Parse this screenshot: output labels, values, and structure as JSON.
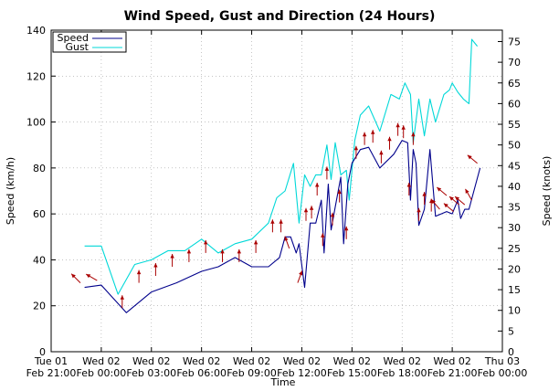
{
  "chart_data": {
    "type": "line",
    "title": "Wind Speed, Gust and Direction (24 Hours)",
    "xlabel": "Time",
    "ylabel": "Speed (km/h)",
    "y2label": "Speed (knots)",
    "ylim": [
      0,
      140
    ],
    "y2lim": [
      0,
      77.76
    ],
    "xlim": [
      "2014-02-01 21:00",
      "2014-02-03 00:00"
    ],
    "grid": true,
    "legend": "top-left",
    "yticks": [
      "0",
      "20",
      "40",
      "60",
      "80",
      "100",
      "120",
      "140"
    ],
    "y2ticks": [
      "0",
      "5",
      "10",
      "15",
      "20",
      "25",
      "30",
      "35",
      "40",
      "45",
      "50",
      "55",
      "60",
      "65",
      "70",
      "75"
    ],
    "xticks": [
      {
        "line1": "Tue 01",
        "line2": "Feb 21:00"
      },
      {
        "line1": "Wed 02",
        "line2": "Feb 00:00"
      },
      {
        "line1": "Wed 02",
        "line2": "Feb 03:00"
      },
      {
        "line1": "Wed 02",
        "line2": "Feb 06:00"
      },
      {
        "line1": "Wed 02",
        "line2": "Feb 09:00"
      },
      {
        "line1": "Wed 02",
        "line2": "Feb 12:00"
      },
      {
        "line1": "Wed 02",
        "line2": "Feb 15:00"
      },
      {
        "line1": "Wed 02",
        "line2": "Feb 18:00"
      },
      {
        "line1": "Wed 02",
        "line2": "Feb 21:00"
      },
      {
        "line1": "Thu 03",
        "line2": "Feb 00:00"
      }
    ],
    "series": [
      {
        "name": "Speed",
        "color": "#00008b",
        "x": [
          "2014-02-01 23:00",
          "2014-02-02 00:00",
          "2014-02-02 01:30",
          "2014-02-02 03:00",
          "2014-02-02 04:30",
          "2014-02-02 06:00",
          "2014-02-02 07:00",
          "2014-02-02 08:00",
          "2014-02-02 09:00",
          "2014-02-02 10:00",
          "2014-02-02 10:40",
          "2014-02-02 11:00",
          "2014-02-02 11:20",
          "2014-02-02 11:40",
          "2014-02-02 11:50",
          "2014-02-02 12:10",
          "2014-02-02 12:30",
          "2014-02-02 12:50",
          "2014-02-02 13:10",
          "2014-02-02 13:20",
          "2014-02-02 13:35",
          "2014-02-02 13:45",
          "2014-02-02 14:00",
          "2014-02-02 14:20",
          "2014-02-02 14:30",
          "2014-02-02 14:45",
          "2014-02-02 15:00",
          "2014-02-02 15:30",
          "2014-02-02 16:00",
          "2014-02-02 16:40",
          "2014-02-02 17:30",
          "2014-02-02 18:00",
          "2014-02-02 18:20",
          "2014-02-02 18:30",
          "2014-02-02 18:40",
          "2014-02-02 18:50",
          "2014-02-02 19:00",
          "2014-02-02 19:20",
          "2014-02-02 19:40",
          "2014-02-02 20:00",
          "2014-02-02 20:40",
          "2014-02-02 21:00",
          "2014-02-02 21:20",
          "2014-02-02 21:30",
          "2014-02-02 21:45",
          "2014-02-02 22:00",
          "2014-02-02 22:40"
        ],
        "values": [
          28,
          29,
          17,
          26,
          30,
          35,
          37,
          41,
          37,
          37,
          41,
          50,
          50,
          43,
          47,
          28,
          56,
          56,
          66,
          43,
          73,
          53,
          63,
          76,
          47,
          73,
          82,
          88,
          89,
          80,
          86,
          92,
          91,
          66,
          88,
          82,
          55,
          62,
          88,
          59,
          61,
          60,
          66,
          58,
          62,
          62,
          80
        ]
      },
      {
        "name": "Gust",
        "color": "#00d8d8",
        "x": [
          "2014-02-01 23:00",
          "2014-02-02 00:00",
          "2014-02-02 01:00",
          "2014-02-02 02:00",
          "2014-02-02 03:00",
          "2014-02-02 04:00",
          "2014-02-02 05:00",
          "2014-02-02 06:00",
          "2014-02-02 07:00",
          "2014-02-02 08:00",
          "2014-02-02 09:00",
          "2014-02-02 10:00",
          "2014-02-02 10:30",
          "2014-02-02 11:00",
          "2014-02-02 11:30",
          "2014-02-02 11:50",
          "2014-02-02 12:10",
          "2014-02-02 12:30",
          "2014-02-02 12:50",
          "2014-02-02 13:10",
          "2014-02-02 13:30",
          "2014-02-02 13:45",
          "2014-02-02 14:00",
          "2014-02-02 14:20",
          "2014-02-02 14:40",
          "2014-02-02 14:50",
          "2014-02-02 15:10",
          "2014-02-02 15:30",
          "2014-02-02 16:00",
          "2014-02-02 16:40",
          "2014-02-02 17:20",
          "2014-02-02 17:50",
          "2014-02-02 18:10",
          "2014-02-02 18:30",
          "2014-02-02 18:40",
          "2014-02-02 19:00",
          "2014-02-02 19:20",
          "2014-02-02 19:40",
          "2014-02-02 20:00",
          "2014-02-02 20:30",
          "2014-02-02 20:50",
          "2014-02-02 21:00",
          "2014-02-02 21:20",
          "2014-02-02 21:40",
          "2014-02-02 22:00",
          "2014-02-02 22:10",
          "2014-02-02 22:30"
        ],
        "values": [
          46,
          46,
          25,
          38,
          40,
          44,
          44,
          49,
          43,
          47,
          49,
          56,
          67,
          70,
          82,
          56,
          77,
          72,
          77,
          77,
          90,
          75,
          91,
          77,
          79,
          66,
          92,
          103,
          107,
          96,
          112,
          110,
          117,
          112,
          91,
          110,
          94,
          110,
          100,
          112,
          114,
          117,
          113,
          110,
          108,
          136,
          133
        ]
      }
    ],
    "direction_arrows": {
      "color": "#aa0000",
      "x": [
        "2014-02-01 22:45",
        "2014-02-01 23:45",
        "2014-02-02 01:15",
        "2014-02-02 02:15",
        "2014-02-02 03:15",
        "2014-02-02 04:15",
        "2014-02-02 05:15",
        "2014-02-02 06:15",
        "2014-02-02 07:15",
        "2014-02-02 08:15",
        "2014-02-02 09:15",
        "2014-02-02 10:15",
        "2014-02-02 10:45",
        "2014-02-02 11:15",
        "2014-02-02 11:45",
        "2014-02-02 12:15",
        "2014-02-02 12:35",
        "2014-02-02 12:55",
        "2014-02-02 13:15",
        "2014-02-02 13:30",
        "2014-02-02 13:50",
        "2014-02-02 14:15",
        "2014-02-02 14:40",
        "2014-02-02 15:15",
        "2014-02-02 15:45",
        "2014-02-02 16:15",
        "2014-02-02 16:45",
        "2014-02-02 17:15",
        "2014-02-02 17:45",
        "2014-02-02 18:05",
        "2014-02-02 18:25",
        "2014-02-02 18:40",
        "2014-02-02 19:00",
        "2014-02-02 19:20",
        "2014-02-02 19:45",
        "2014-02-02 20:15",
        "2014-02-02 20:40",
        "2014-02-02 21:05",
        "2014-02-02 21:25",
        "2014-02-02 21:45",
        "2014-02-02 22:10",
        "2014-02-02 22:30"
      ],
      "speed": [
        30,
        31,
        19,
        30,
        33,
        37,
        39,
        43,
        39,
        39,
        43,
        52,
        52,
        45,
        30,
        57,
        58,
        68,
        46,
        75,
        55,
        65,
        49,
        84,
        90,
        91,
        82,
        88,
        94,
        93,
        68,
        90,
        57,
        64,
        61,
        62,
        68,
        61,
        64,
        64,
        66,
        82
      ],
      "direction_deg": [
        135,
        120,
        180,
        180,
        180,
        180,
        180,
        180,
        180,
        180,
        180,
        180,
        180,
        160,
        200,
        180,
        180,
        180,
        180,
        180,
        180,
        180,
        180,
        180,
        180,
        180,
        180,
        180,
        180,
        180,
        180,
        180,
        180,
        180,
        180,
        140,
        130,
        130,
        130,
        130,
        150,
        130
      ]
    }
  }
}
